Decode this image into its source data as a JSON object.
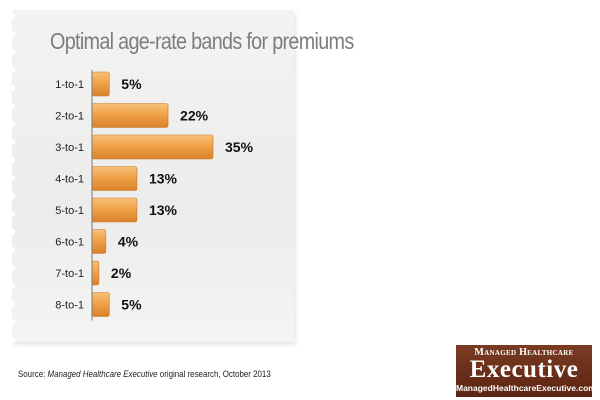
{
  "chart_data": {
    "type": "bar",
    "orientation": "horizontal",
    "title": "Optimal age-rate bands for premiums",
    "categories": [
      "1-to-1",
      "2-to-1",
      "3-to-1",
      "4-to-1",
      "5-to-1",
      "6-to-1",
      "7-to-1",
      "8-to-1"
    ],
    "values": [
      5,
      22,
      35,
      13,
      13,
      4,
      2,
      5
    ],
    "value_labels": [
      "5%",
      "22%",
      "35%",
      "13%",
      "13%",
      "4%",
      "2%",
      "5%"
    ],
    "xlabel": "",
    "ylabel": "",
    "xlim": [
      0,
      35
    ],
    "grid": false,
    "bar_color": "#f0a24a"
  },
  "source": {
    "prefix": "Source:",
    "publication": "Managed Healthcare Executive",
    "suffix": "original research, October 2013"
  },
  "logo": {
    "line1": "Managed Healthcare",
    "line2": "Executive",
    "line3": "ManagedHealthcareExecutive.com",
    "color": "#6b2f18"
  }
}
